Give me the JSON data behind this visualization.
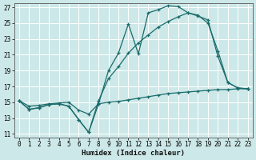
{
  "xlabel": "Humidex (Indice chaleur)",
  "xlim": [
    0,
    23
  ],
  "ylim": [
    11,
    27
  ],
  "xticks": [
    0,
    1,
    2,
    3,
    4,
    5,
    6,
    7,
    8,
    9,
    10,
    11,
    12,
    13,
    14,
    15,
    16,
    17,
    18,
    19,
    20,
    21,
    22,
    23
  ],
  "yticks": [
    11,
    13,
    15,
    17,
    19,
    21,
    23,
    25,
    27
  ],
  "bg_color": "#cde8e8",
  "line_color": "#1a6b6b",
  "grid_color": "#b8d8d8",
  "line1_x": [
    0,
    1,
    2,
    3,
    4,
    5,
    6,
    7,
    8,
    9,
    10,
    11,
    12,
    13,
    14,
    15,
    16,
    17,
    18,
    19,
    20,
    21,
    22,
    23
  ],
  "line1_y": [
    15.2,
    14.1,
    14.3,
    14.7,
    14.8,
    14.5,
    12.8,
    11.2,
    14.8,
    19.0,
    21.2,
    24.9,
    21.1,
    26.3,
    26.7,
    27.2,
    27.1,
    26.3,
    25.9,
    25.4,
    20.8,
    17.5,
    16.8,
    16.7
  ],
  "line2_x": [
    0,
    1,
    2,
    3,
    4,
    5,
    6,
    7,
    8,
    9,
    10,
    11,
    12,
    13,
    14,
    15,
    16,
    17,
    18,
    19,
    20,
    21,
    22,
    23
  ],
  "line2_y": [
    15.2,
    14.1,
    14.3,
    14.7,
    14.8,
    14.5,
    12.8,
    11.2,
    15.2,
    18.0,
    19.5,
    21.2,
    22.5,
    23.5,
    24.5,
    25.2,
    25.8,
    26.3,
    26.0,
    25.0,
    21.5,
    17.5,
    16.8,
    16.7
  ],
  "line3_x": [
    0,
    1,
    2,
    3,
    4,
    5,
    6,
    7,
    8,
    9,
    10,
    11,
    12,
    13,
    14,
    15,
    16,
    17,
    18,
    19,
    20,
    21,
    22,
    23
  ],
  "line3_y": [
    15.2,
    14.5,
    14.6,
    14.8,
    14.9,
    15.0,
    14.0,
    13.5,
    14.8,
    15.0,
    15.1,
    15.3,
    15.5,
    15.7,
    15.9,
    16.1,
    16.2,
    16.3,
    16.4,
    16.5,
    16.6,
    16.6,
    16.7,
    16.7
  ]
}
